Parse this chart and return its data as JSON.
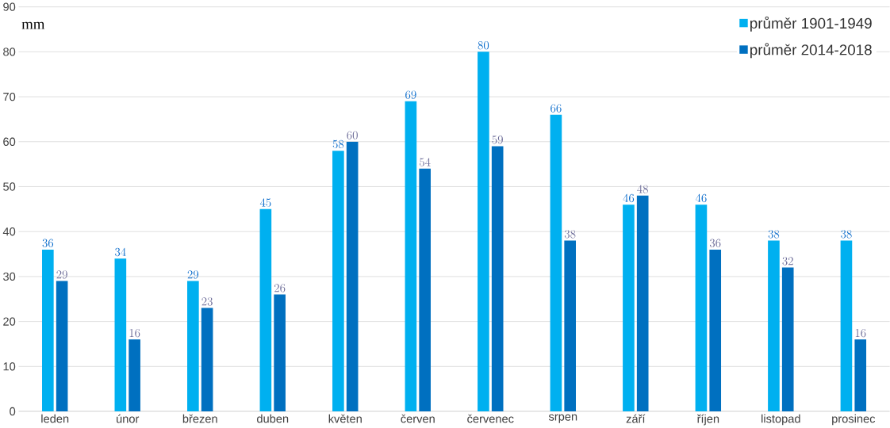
{
  "chart_data": {
    "type": "bar",
    "ylabel": "mm",
    "categories": [
      "leden",
      "únor",
      "březen",
      "duben",
      "květen",
      "červen",
      "červenec",
      "srpen",
      "září",
      "říjen",
      "listopad",
      "prosinec"
    ],
    "series": [
      {
        "name": "průměr 1901-1949",
        "color": "#00b0f0",
        "values": [
          36,
          34,
          29,
          45,
          58,
          69,
          80,
          66,
          46,
          46,
          38,
          38
        ]
      },
      {
        "name": "průměr 2014-2018",
        "color": "#0070c0",
        "values": [
          29,
          16,
          23,
          26,
          60,
          54,
          59,
          38,
          48,
          36,
          32,
          16
        ]
      }
    ],
    "ylim": [
      0,
      90
    ],
    "yticks": [
      0,
      10,
      20,
      30,
      40,
      50,
      60,
      70,
      80,
      90
    ],
    "grid": "y",
    "legend": "top right",
    "data_labels": true
  }
}
